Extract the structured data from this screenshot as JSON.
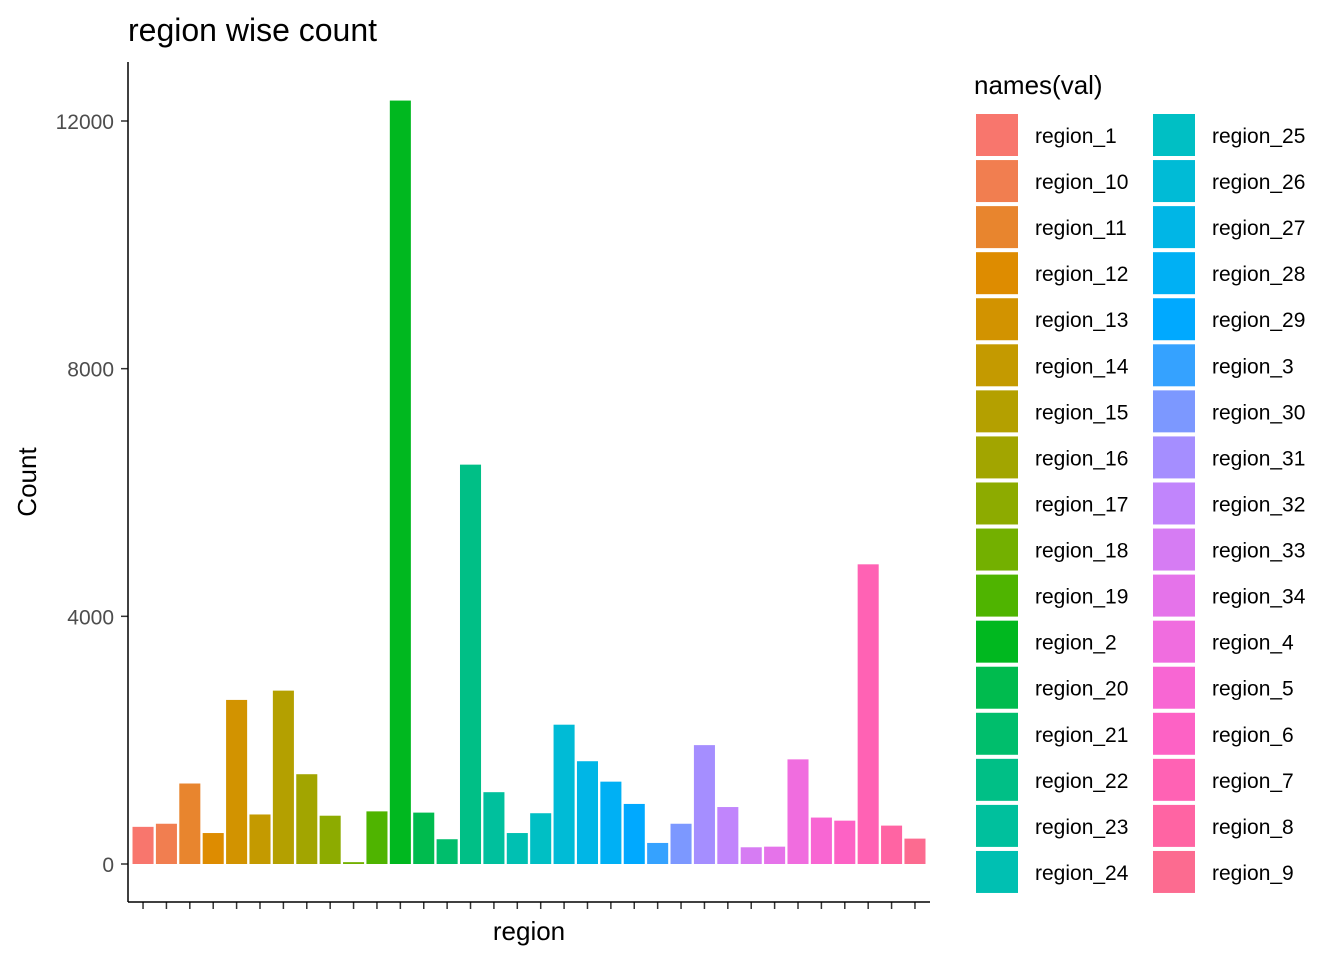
{
  "chart_data": {
    "type": "bar",
    "title": "region wise count",
    "xlabel": "region",
    "ylabel": "Count",
    "ylim": [
      -600,
      13000
    ],
    "yticks": [
      0,
      4000,
      8000,
      12000
    ],
    "yticklabels": [
      "0",
      "4000",
      "8000",
      "12000"
    ],
    "grid": false,
    "legend_position": "right",
    "legend_title": "names(val)",
    "categories": [
      "region_1",
      "region_10",
      "region_11",
      "region_12",
      "region_13",
      "region_14",
      "region_15",
      "region_16",
      "region_17",
      "region_18",
      "region_19",
      "region_2",
      "region_20",
      "region_21",
      "region_22",
      "region_23",
      "region_24",
      "region_25",
      "region_26",
      "region_27",
      "region_28",
      "region_29",
      "region_3",
      "region_30",
      "region_31",
      "region_32",
      "region_33",
      "region_34",
      "region_4",
      "region_5",
      "region_6",
      "region_7",
      "region_8",
      "region_9"
    ],
    "values": [
      600,
      650,
      1300,
      500,
      2650,
      800,
      2800,
      1450,
      780,
      30,
      850,
      12330,
      830,
      400,
      6450,
      1160,
      500,
      820,
      2250,
      1660,
      1330,
      970,
      340,
      650,
      1920,
      920,
      270,
      280,
      1690,
      750,
      700,
      4840,
      620,
      410
    ],
    "colors": [
      "#F8766D",
      "#F17E50",
      "#E8852E",
      "#DE8C00",
      "#D29300",
      "#C49A00",
      "#B4A000",
      "#A2A500",
      "#8DAB00",
      "#73B000",
      "#4FB400",
      "#00B81F",
      "#00BB4E",
      "#00BE6C",
      "#00BF86",
      "#00C09D",
      "#00C0B2",
      "#00BFC4",
      "#00BBD6",
      "#00B6E6",
      "#00B0F4",
      "#00A9FF",
      "#35A2FF",
      "#7C98FF",
      "#A58EFF",
      "#C185FC",
      "#D67CF3",
      "#E573EA",
      "#F06DDF",
      "#F866D3",
      "#FD62C5",
      "#FF62B4",
      "#FF64A3",
      "#FC6B90"
    ]
  }
}
